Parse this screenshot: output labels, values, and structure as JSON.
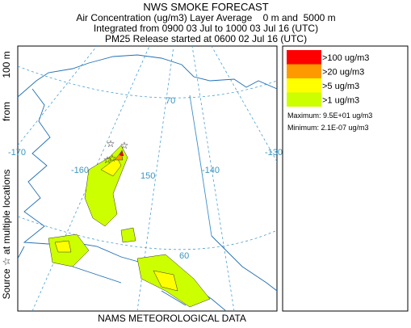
{
  "title": "NWS SMOKE FORECAST",
  "subtitle_lines": [
    "Air Concentration (ug/m3) Layer Average    0 m and  5000 m",
    "Integrated from 0900 03 Jul to 1000 03 Jul 16 (UTC)",
    "PM25 Release started at 0600 02 Jul 16 (UTC)"
  ],
  "side_label": {
    "source": "Source ☆ at multiple locations",
    "from": "from",
    "height": "100 m"
  },
  "legend": {
    "items": [
      {
        "label": ">100 ug/m3",
        "color": "#ff0000"
      },
      {
        "label": ">20 ug/m3",
        "color": "#ff9900"
      },
      {
        "label": ">5 ug/m3",
        "color": "#ffff00"
      },
      {
        "label": ">1 ug/m3",
        "color": "#ccff00"
      }
    ],
    "maximum": "Maximum: 9.5E+01 ug/m3",
    "minimum": "Minimum: 2.1E-07 ug/m3"
  },
  "map_labels": {
    "lon": [
      "-170",
      "-160",
      "150",
      "-140",
      "-130"
    ],
    "lat": [
      "70",
      "60"
    ]
  },
  "footer": "NAMS METEOROLOGICAL DATA"
}
